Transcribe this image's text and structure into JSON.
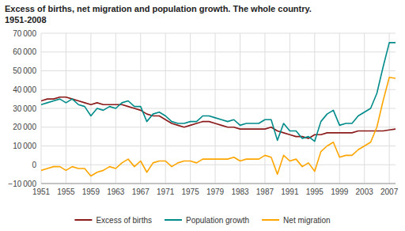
{
  "chart_data": {
    "type": "line",
    "title": "Excess of births, net migration and population growth. The whole country.",
    "subtitle": "1951-2008",
    "x": [
      1951,
      1952,
      1953,
      1954,
      1955,
      1956,
      1957,
      1958,
      1959,
      1960,
      1961,
      1962,
      1963,
      1964,
      1965,
      1966,
      1967,
      1968,
      1969,
      1970,
      1971,
      1972,
      1973,
      1974,
      1975,
      1976,
      1977,
      1978,
      1979,
      1980,
      1981,
      1982,
      1983,
      1984,
      1985,
      1986,
      1987,
      1988,
      1989,
      1990,
      1991,
      1992,
      1993,
      1994,
      1995,
      1996,
      1997,
      1998,
      1999,
      2000,
      2001,
      2002,
      2003,
      2004,
      2005,
      2006,
      2007,
      2008
    ],
    "series": [
      {
        "name": "Excess of births",
        "color": "#8B1A1A",
        "values": [
          34000,
          35000,
          35000,
          36000,
          36000,
          35000,
          34000,
          33000,
          32000,
          33000,
          32000,
          32000,
          32000,
          32000,
          31000,
          30000,
          29000,
          27000,
          26000,
          26000,
          24000,
          22000,
          21000,
          20000,
          21000,
          22000,
          23000,
          23000,
          22000,
          21000,
          20000,
          20000,
          19000,
          19000,
          19000,
          19000,
          19000,
          20000,
          18000,
          17000,
          16000,
          15000,
          15000,
          14000,
          16000,
          16000,
          17000,
          17000,
          17000,
          17000,
          17000,
          18000,
          18000,
          18000,
          18000,
          18000,
          18500,
          19000
        ]
      },
      {
        "name": "Population growth",
        "color": "#008B8B",
        "values": [
          32000,
          33000,
          34000,
          35000,
          33000,
          35000,
          32000,
          31000,
          26000,
          30000,
          29000,
          31000,
          30000,
          33000,
          34000,
          31000,
          31000,
          23000,
          27000,
          28000,
          26000,
          23000,
          22000,
          22000,
          23000,
          23000,
          26000,
          26000,
          25000,
          24000,
          23000,
          24000,
          21000,
          22000,
          22000,
          22000,
          24000,
          24000,
          13000,
          22000,
          18000,
          18000,
          14000,
          15000,
          12500,
          23000,
          27000,
          29000,
          21000,
          22000,
          22000,
          26000,
          28000,
          30000,
          38000,
          52000,
          65000,
          65000
        ]
      },
      {
        "name": "Net migration",
        "color": "#FFA500",
        "values": [
          -3000,
          -2000,
          -1000,
          -1000,
          -3000,
          -1000,
          -2000,
          -2000,
          -6000,
          -4000,
          -3000,
          -1000,
          -2000,
          1000,
          3000,
          -1000,
          2000,
          -4000,
          1000,
          2000,
          2000,
          -1000,
          1000,
          2000,
          2000,
          1000,
          3000,
          3000,
          3000,
          3000,
          3000,
          4000,
          2000,
          3000,
          3000,
          3000,
          5000,
          4000,
          -5000,
          5000,
          2000,
          3000,
          -1000,
          1000,
          -3500,
          7000,
          10000,
          12000,
          4000,
          5000,
          5000,
          8000,
          10000,
          12000,
          20000,
          34000,
          46500,
          46000
        ]
      }
    ],
    "xlim": [
      1951,
      2008
    ],
    "xticks": [
      1951,
      1955,
      1959,
      1963,
      1967,
      1971,
      1975,
      1979,
      1983,
      1987,
      1991,
      1995,
      1999,
      2003,
      2007
    ],
    "ylim": [
      -10000,
      70000
    ],
    "yticks": [
      {
        "value": -10000,
        "label": "−10 000"
      },
      0,
      {
        "value": 10000,
        "label": "10 000"
      },
      {
        "value": 20000,
        "label": "20 000"
      },
      {
        "value": 30000,
        "label": "30 000"
      },
      {
        "value": 40000,
        "label": "40 000"
      },
      {
        "value": 50000,
        "label": "50 000"
      },
      {
        "value": 60000,
        "label": "60 000"
      },
      {
        "value": 70000,
        "label": "70 000"
      }
    ],
    "grid": true,
    "legend": "bottom"
  }
}
